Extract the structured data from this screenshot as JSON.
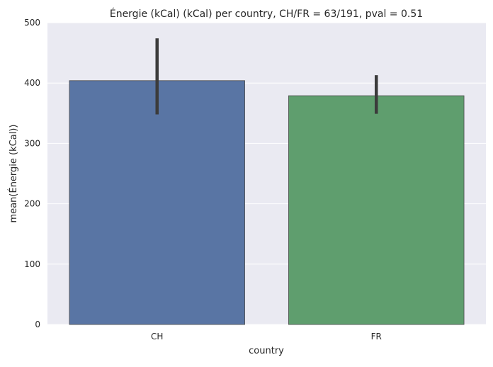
{
  "chart_data": {
    "type": "bar",
    "title": "Énergie (kCal) (kCal) per country, CH/FR = 63/191, pval = 0.51",
    "xlabel": "country",
    "ylabel": "mean(Énergie (kCal))",
    "categories": [
      "CH",
      "FR"
    ],
    "values": [
      404,
      379
    ],
    "error_bars": [
      {
        "low": 348,
        "high": 474
      },
      {
        "low": 349,
        "high": 413
      }
    ],
    "colors": [
      "#5975a4",
      "#5f9e6e"
    ],
    "ylim": [
      0,
      500
    ],
    "yticks": [
      0,
      100,
      200,
      300,
      400,
      500
    ],
    "background": "#eaeaf2",
    "grid": true
  }
}
